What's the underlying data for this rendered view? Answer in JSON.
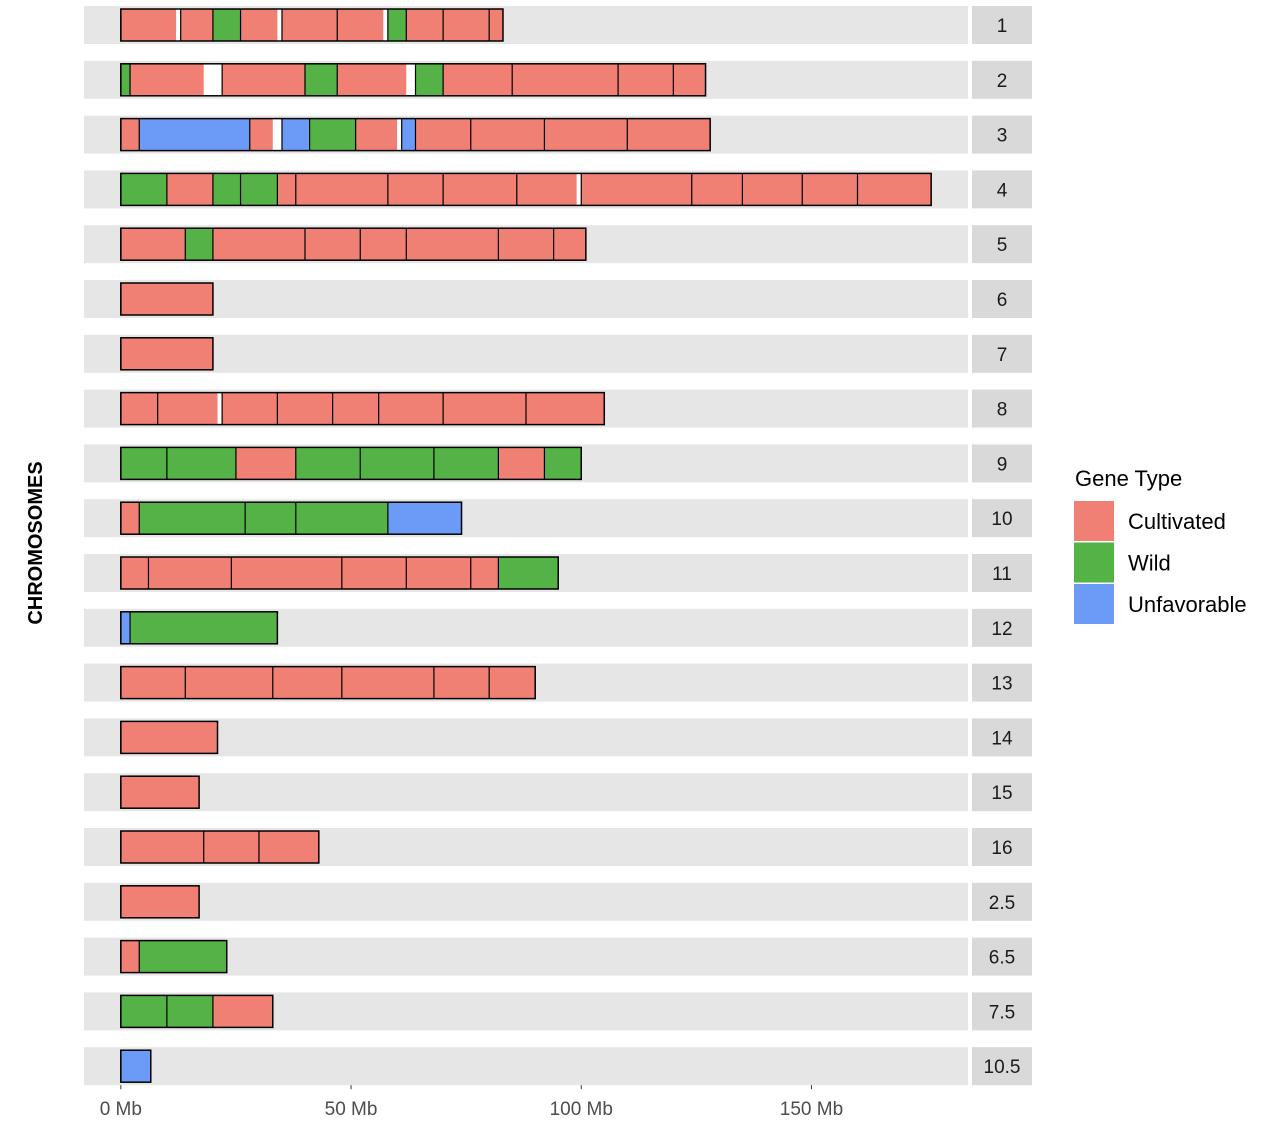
{
  "chart_data": {
    "type": "bar",
    "subtype": "chromosome-ideogram",
    "ylabel": "CHROMOSOMES",
    "x_ticks": [
      {
        "value": 0,
        "label": "0 Mb"
      },
      {
        "value": 50,
        "label": "50 Mb"
      },
      {
        "value": 100,
        "label": "100 Mb"
      },
      {
        "value": 150,
        "label": "150 Mb"
      }
    ],
    "xlim": [
      -8,
      184
    ],
    "grid": false,
    "legend": {
      "title": "Gene Type",
      "position": "right",
      "items": [
        {
          "name": "Cultivated",
          "color": "#F07F74"
        },
        {
          "name": "Wild",
          "color": "#54B247"
        },
        {
          "name": "Unfavorable",
          "color": "#6B9BF7"
        }
      ]
    },
    "colors": {
      "background": "#E6E6E6",
      "strip": "#D9D9D9",
      "gap_fill": "#FFFFFF",
      "outline": "#000000"
    },
    "chromosomes": [
      {
        "label": "1",
        "length": 83,
        "segments": [
          [
            0,
            12,
            "C"
          ],
          [
            13,
            20,
            "C"
          ],
          [
            20,
            26,
            "W"
          ],
          [
            26,
            34,
            "C"
          ],
          [
            35,
            47,
            "C"
          ],
          [
            47,
            57,
            "C"
          ],
          [
            58,
            62,
            "W"
          ],
          [
            62,
            70,
            "C"
          ],
          [
            70,
            80,
            "C"
          ],
          [
            80,
            83,
            "C"
          ]
        ]
      },
      {
        "label": "2",
        "length": 127,
        "segments": [
          [
            0,
            2,
            "W"
          ],
          [
            2,
            18,
            "C"
          ],
          [
            22,
            40,
            "C"
          ],
          [
            40,
            47,
            "W"
          ],
          [
            47,
            62,
            "C"
          ],
          [
            64,
            70,
            "W"
          ],
          [
            70,
            85,
            "C"
          ],
          [
            85,
            108,
            "C"
          ],
          [
            108,
            120,
            "C"
          ],
          [
            120,
            127,
            "C"
          ]
        ]
      },
      {
        "label": "3",
        "length": 128,
        "segments": [
          [
            0,
            4,
            "C"
          ],
          [
            4,
            28,
            "U"
          ],
          [
            28,
            33,
            "C"
          ],
          [
            35,
            41,
            "U"
          ],
          [
            41,
            51,
            "W"
          ],
          [
            51,
            60,
            "C"
          ],
          [
            61,
            64,
            "U"
          ],
          [
            64,
            76,
            "C"
          ],
          [
            76,
            92,
            "C"
          ],
          [
            92,
            110,
            "C"
          ],
          [
            110,
            128,
            "C"
          ]
        ]
      },
      {
        "label": "4",
        "length": 176,
        "segments": [
          [
            0,
            10,
            "W"
          ],
          [
            10,
            20,
            "C"
          ],
          [
            20,
            26,
            "W"
          ],
          [
            26,
            34,
            "W"
          ],
          [
            34,
            38,
            "C"
          ],
          [
            38,
            58,
            "C"
          ],
          [
            58,
            70,
            "C"
          ],
          [
            70,
            86,
            "C"
          ],
          [
            86,
            99,
            "C"
          ],
          [
            100,
            124,
            "C"
          ],
          [
            124,
            135,
            "C"
          ],
          [
            135,
            148,
            "C"
          ],
          [
            148,
            160,
            "C"
          ],
          [
            160,
            176,
            "C"
          ]
        ]
      },
      {
        "label": "5",
        "length": 101,
        "segments": [
          [
            0,
            14,
            "C"
          ],
          [
            14,
            20,
            "W"
          ],
          [
            20,
            40,
            "C"
          ],
          [
            40,
            52,
            "C"
          ],
          [
            52,
            62,
            "C"
          ],
          [
            62,
            82,
            "C"
          ],
          [
            82,
            94,
            "C"
          ],
          [
            94,
            101,
            "C"
          ]
        ]
      },
      {
        "label": "6",
        "length": 20,
        "segments": [
          [
            0,
            20,
            "C"
          ]
        ]
      },
      {
        "label": "7",
        "length": 20,
        "segments": [
          [
            0,
            20,
            "C"
          ]
        ]
      },
      {
        "label": "8",
        "length": 105,
        "segments": [
          [
            0,
            8,
            "C"
          ],
          [
            8,
            21,
            "C"
          ],
          [
            22,
            34,
            "C"
          ],
          [
            34,
            46,
            "C"
          ],
          [
            46,
            56,
            "C"
          ],
          [
            56,
            70,
            "C"
          ],
          [
            70,
            88,
            "C"
          ],
          [
            88,
            105,
            "C"
          ]
        ]
      },
      {
        "label": "9",
        "length": 100,
        "segments": [
          [
            0,
            10,
            "W"
          ],
          [
            10,
            25,
            "W"
          ],
          [
            25,
            38,
            "C"
          ],
          [
            38,
            52,
            "W"
          ],
          [
            52,
            68,
            "W"
          ],
          [
            68,
            82,
            "W"
          ],
          [
            82,
            92,
            "C"
          ],
          [
            92,
            100,
            "W"
          ]
        ]
      },
      {
        "label": "10",
        "length": 74,
        "segments": [
          [
            0,
            4,
            "C"
          ],
          [
            4,
            27,
            "W"
          ],
          [
            27,
            38,
            "W"
          ],
          [
            38,
            58,
            "W"
          ],
          [
            58,
            74,
            "U"
          ]
        ]
      },
      {
        "label": "11",
        "length": 95,
        "segments": [
          [
            0,
            6,
            "C"
          ],
          [
            6,
            24,
            "C"
          ],
          [
            24,
            48,
            "C"
          ],
          [
            48,
            62,
            "C"
          ],
          [
            62,
            76,
            "C"
          ],
          [
            76,
            82,
            "C"
          ],
          [
            82,
            95,
            "W"
          ]
        ]
      },
      {
        "label": "12",
        "length": 34,
        "segments": [
          [
            0,
            2,
            "U"
          ],
          [
            2,
            34,
            "W"
          ]
        ]
      },
      {
        "label": "13",
        "length": 90,
        "segments": [
          [
            0,
            14,
            "C"
          ],
          [
            14,
            33,
            "C"
          ],
          [
            33,
            48,
            "C"
          ],
          [
            48,
            68,
            "C"
          ],
          [
            68,
            80,
            "C"
          ],
          [
            80,
            90,
            "C"
          ]
        ]
      },
      {
        "label": "14",
        "length": 21,
        "segments": [
          [
            0,
            21,
            "C"
          ]
        ]
      },
      {
        "label": "15",
        "length": 17,
        "segments": [
          [
            0,
            17,
            "C"
          ]
        ]
      },
      {
        "label": "16",
        "length": 43,
        "segments": [
          [
            0,
            18,
            "C"
          ],
          [
            18,
            30,
            "C"
          ],
          [
            30,
            43,
            "C"
          ]
        ]
      },
      {
        "label": "2.5",
        "length": 17,
        "segments": [
          [
            0,
            17,
            "C"
          ]
        ]
      },
      {
        "label": "6.5",
        "length": 23,
        "segments": [
          [
            0,
            4,
            "C"
          ],
          [
            4,
            23,
            "W"
          ]
        ]
      },
      {
        "label": "7.5",
        "length": 33,
        "segments": [
          [
            0,
            10,
            "W"
          ],
          [
            10,
            20,
            "W"
          ],
          [
            20,
            33,
            "C"
          ]
        ]
      },
      {
        "label": "10.5",
        "length": 6.5,
        "segments": [
          [
            0,
            6.5,
            "U"
          ]
        ]
      }
    ]
  }
}
